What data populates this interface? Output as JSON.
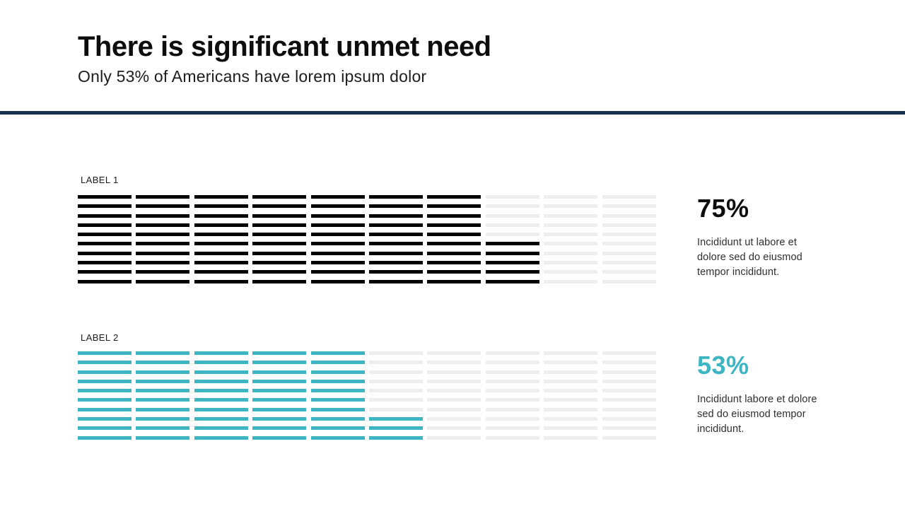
{
  "header": {
    "title": "There is significant unmet need",
    "subtitle": "Only 53% of Americans have lorem ipsum dolor"
  },
  "colors": {
    "divider_navy": "#14304f",
    "empty_fill": "#eeeeee",
    "black_fill": "#000000",
    "teal_fill": "#3db5c3"
  },
  "chart_data": [
    {
      "type": "bar",
      "subtype": "striped-waffle-bar",
      "label": "LABEL 1",
      "percent": 75,
      "value_label": "75%",
      "description": "Incididunt ut labore et dolore sed do eiusmod tempor incididunt.",
      "blocks_total": 10,
      "stripes_per_block": 10,
      "fill_color": "#000000",
      "value_color": "#0d0d0d",
      "fill_direction": "left-to-right, partial block fills bottom-up"
    },
    {
      "type": "bar",
      "subtype": "striped-waffle-bar",
      "label": "LABEL 2",
      "percent": 53,
      "value_label": "53%",
      "description": "Incididunt labore et dolore sed do eiusmod tempor incididunt.",
      "blocks_total": 10,
      "stripes_per_block": 10,
      "fill_color": "#3db5c3",
      "value_color": "#3db5c3",
      "fill_direction": "left-to-right, partial block fills bottom-up"
    }
  ]
}
